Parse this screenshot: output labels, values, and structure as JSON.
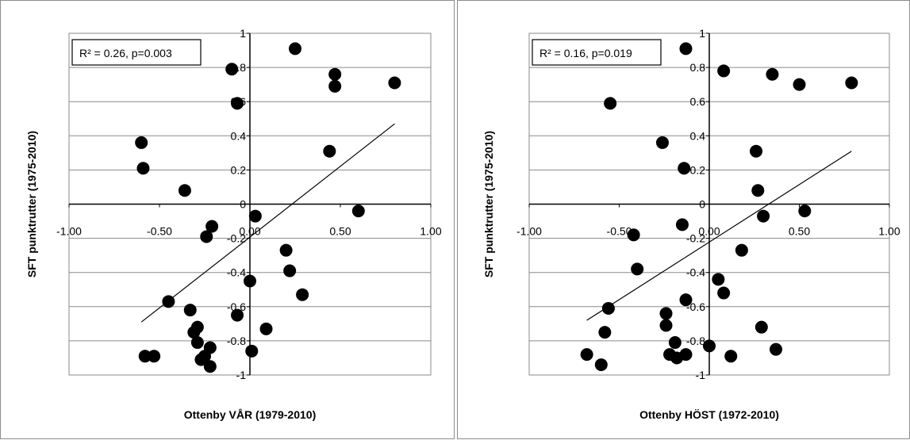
{
  "chart_data": [
    {
      "type": "scatter",
      "title": "",
      "xlabel": "Ottenby VÅR (1979-2010)",
      "ylabel": "SFT punktrutter (1975-2010)",
      "annotation": "R² = 0.26, p=0.003",
      "xlim": [
        -1,
        1
      ],
      "ylim": [
        -1,
        1
      ],
      "x_ticks": [
        "-1.00",
        "-0.50",
        "0.00",
        "0.50",
        "1.00"
      ],
      "y_ticks": [
        "-1",
        "-0.8",
        "-0.6",
        "-0.4",
        "-0.2",
        "0",
        "0.2",
        "0.4",
        "0.6",
        "0.8",
        "1"
      ],
      "grid": "horizontal",
      "trendline": {
        "x": [
          -0.6,
          0.8
        ],
        "y": [
          -0.69,
          0.47
        ]
      },
      "points": [
        {
          "x": -0.6,
          "y": 0.36
        },
        {
          "x": -0.59,
          "y": 0.21
        },
        {
          "x": -0.36,
          "y": 0.08
        },
        {
          "x": -0.1,
          "y": 0.79
        },
        {
          "x": -0.07,
          "y": 0.59
        },
        {
          "x": 0.25,
          "y": 0.91
        },
        {
          "x": 0.47,
          "y": 0.76
        },
        {
          "x": 0.47,
          "y": 0.69
        },
        {
          "x": 0.8,
          "y": 0.71
        },
        {
          "x": 0.44,
          "y": 0.31
        },
        {
          "x": 0.6,
          "y": -0.04
        },
        {
          "x": 0.03,
          "y": -0.07
        },
        {
          "x": -0.21,
          "y": -0.13
        },
        {
          "x": -0.24,
          "y": -0.19
        },
        {
          "x": 0.2,
          "y": -0.27
        },
        {
          "x": 0.22,
          "y": -0.39
        },
        {
          "x": 0.0,
          "y": -0.45
        },
        {
          "x": 0.29,
          "y": -0.53
        },
        {
          "x": -0.45,
          "y": -0.57
        },
        {
          "x": -0.33,
          "y": -0.62
        },
        {
          "x": -0.07,
          "y": -0.65
        },
        {
          "x": -0.29,
          "y": -0.72
        },
        {
          "x": 0.09,
          "y": -0.73
        },
        {
          "x": -0.31,
          "y": -0.75
        },
        {
          "x": -0.29,
          "y": -0.81
        },
        {
          "x": -0.22,
          "y": -0.84
        },
        {
          "x": 0.01,
          "y": -0.86
        },
        {
          "x": -0.58,
          "y": -0.89
        },
        {
          "x": -0.53,
          "y": -0.89
        },
        {
          "x": -0.25,
          "y": -0.89
        },
        {
          "x": -0.27,
          "y": -0.91
        },
        {
          "x": -0.22,
          "y": -0.95
        }
      ]
    },
    {
      "type": "scatter",
      "title": "",
      "xlabel": "Ottenby  HÖST (1972-2010)",
      "ylabel": "SFT punktrutter (1975-2010)",
      "annotation": "R² = 0.16, p=0.019",
      "xlim": [
        -1,
        1
      ],
      "ylim": [
        -1,
        1
      ],
      "x_ticks": [
        "-1.00",
        "-0.50",
        "0.00",
        "0.50",
        "1.00"
      ],
      "y_ticks": [
        "-1",
        "-0.8",
        "-0.6",
        "-0.4",
        "-0.2",
        "0",
        "0.2",
        "0.4",
        "0.6",
        "0.8",
        "1"
      ],
      "grid": "horizontal",
      "trendline": {
        "x": [
          -0.68,
          0.79
        ],
        "y": [
          -0.68,
          0.31
        ]
      },
      "points": [
        {
          "x": -0.13,
          "y": 0.91
        },
        {
          "x": 0.08,
          "y": 0.78
        },
        {
          "x": 0.35,
          "y": 0.76
        },
        {
          "x": 0.5,
          "y": 0.7
        },
        {
          "x": 0.79,
          "y": 0.71
        },
        {
          "x": -0.55,
          "y": 0.59
        },
        {
          "x": -0.26,
          "y": 0.36
        },
        {
          "x": 0.26,
          "y": 0.31
        },
        {
          "x": -0.14,
          "y": 0.21
        },
        {
          "x": 0.27,
          "y": 0.08
        },
        {
          "x": 0.53,
          "y": -0.04
        },
        {
          "x": 0.3,
          "y": -0.07
        },
        {
          "x": -0.15,
          "y": -0.12
        },
        {
          "x": -0.42,
          "y": -0.18
        },
        {
          "x": 0.18,
          "y": -0.27
        },
        {
          "x": -0.4,
          "y": -0.38
        },
        {
          "x": 0.05,
          "y": -0.44
        },
        {
          "x": 0.08,
          "y": -0.52
        },
        {
          "x": -0.13,
          "y": -0.56
        },
        {
          "x": -0.56,
          "y": -0.61
        },
        {
          "x": -0.24,
          "y": -0.64
        },
        {
          "x": -0.24,
          "y": -0.71
        },
        {
          "x": 0.29,
          "y": -0.72
        },
        {
          "x": -0.58,
          "y": -0.75
        },
        {
          "x": -0.19,
          "y": -0.81
        },
        {
          "x": 0.0,
          "y": -0.83
        },
        {
          "x": 0.37,
          "y": -0.85
        },
        {
          "x": -0.68,
          "y": -0.88
        },
        {
          "x": -0.22,
          "y": -0.88
        },
        {
          "x": -0.13,
          "y": -0.88
        },
        {
          "x": 0.12,
          "y": -0.89
        },
        {
          "x": -0.18,
          "y": -0.9
        },
        {
          "x": -0.6,
          "y": -0.94
        }
      ]
    }
  ]
}
